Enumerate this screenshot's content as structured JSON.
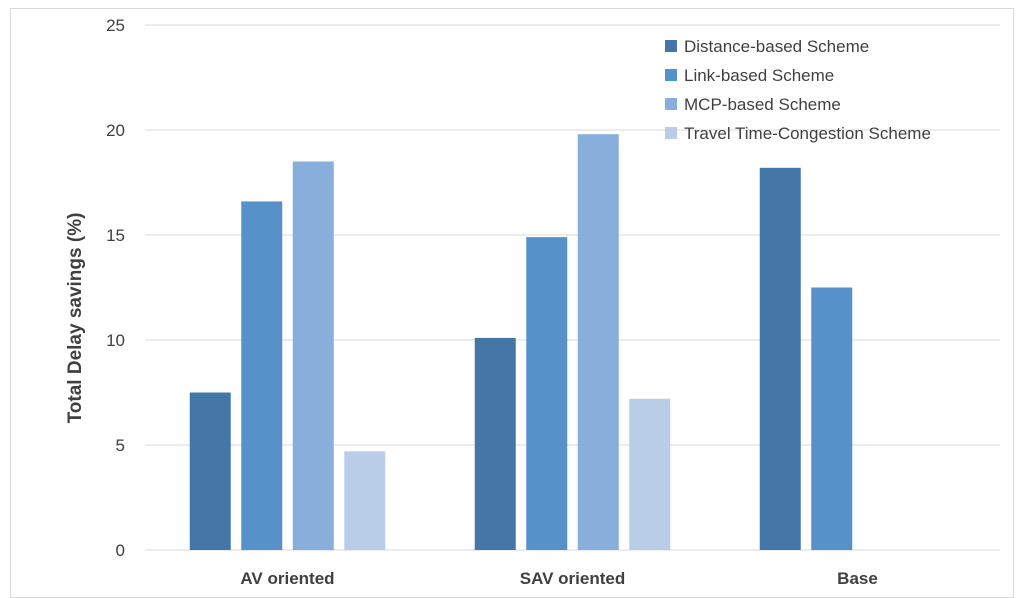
{
  "chart_data": {
    "type": "bar",
    "title": "",
    "xlabel": "",
    "ylabel": "Total Delay savings (%)",
    "ylim": [
      0,
      25
    ],
    "yticks": [
      0,
      5,
      10,
      15,
      20,
      25
    ],
    "grid": true,
    "legend_position": "top-right",
    "categories": [
      "AV oriented",
      "SAV oriented",
      "Base"
    ],
    "series": [
      {
        "name": "Distance-based Scheme",
        "color": "#4477a8",
        "values": [
          7.5,
          10.1,
          18.2
        ]
      },
      {
        "name": "Link-based Scheme",
        "color": "#5692c9",
        "values": [
          16.6,
          14.9,
          12.5
        ]
      },
      {
        "name": "MCP-based Scheme",
        "color": "#88afdc",
        "values": [
          18.5,
          19.8,
          null
        ]
      },
      {
        "name": "Travel Time-Congestion Scheme",
        "color": "#bacde8",
        "values": [
          4.7,
          7.2,
          null
        ]
      }
    ]
  }
}
